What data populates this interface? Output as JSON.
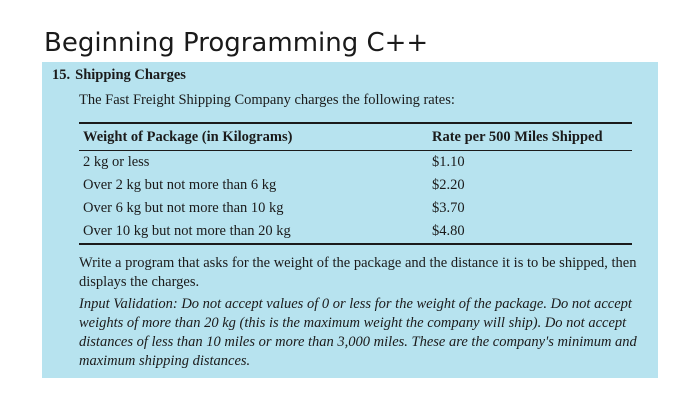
{
  "page": {
    "title": "Beginning Programming C++"
  },
  "problem": {
    "number": "15.",
    "title": "Shipping Charges",
    "intro": "The Fast Freight Shipping Company charges the following rates:",
    "table": {
      "headers": [
        "Weight of Package (in Kilograms)",
        "Rate per 500 Miles Shipped"
      ],
      "rows": [
        [
          "2 kg or less",
          "$1.10"
        ],
        [
          "Over 2 kg but not more than 6 kg",
          "$2.20"
        ],
        [
          "Over 6 kg but not more than 10 kg",
          "$3.70"
        ],
        [
          "Over 10 kg but not more than 20 kg",
          "$4.80"
        ]
      ]
    },
    "description": "Write a program that asks for the weight of the package and the distance it is to be shipped, then displays the charges.",
    "validation_label": "Input Validation:",
    "validation_text": "Do not accept values of 0 or less for the weight of the package. Do not accept weights of more than 20 kg (this is the maximum weight the company will ship). Do not accept distances of less than 10 miles or more than 3,000 miles. These are the company's minimum and maximum shipping distances."
  },
  "colors": {
    "panel_background": "#b7e3ef",
    "text": "#1b1b1b"
  }
}
